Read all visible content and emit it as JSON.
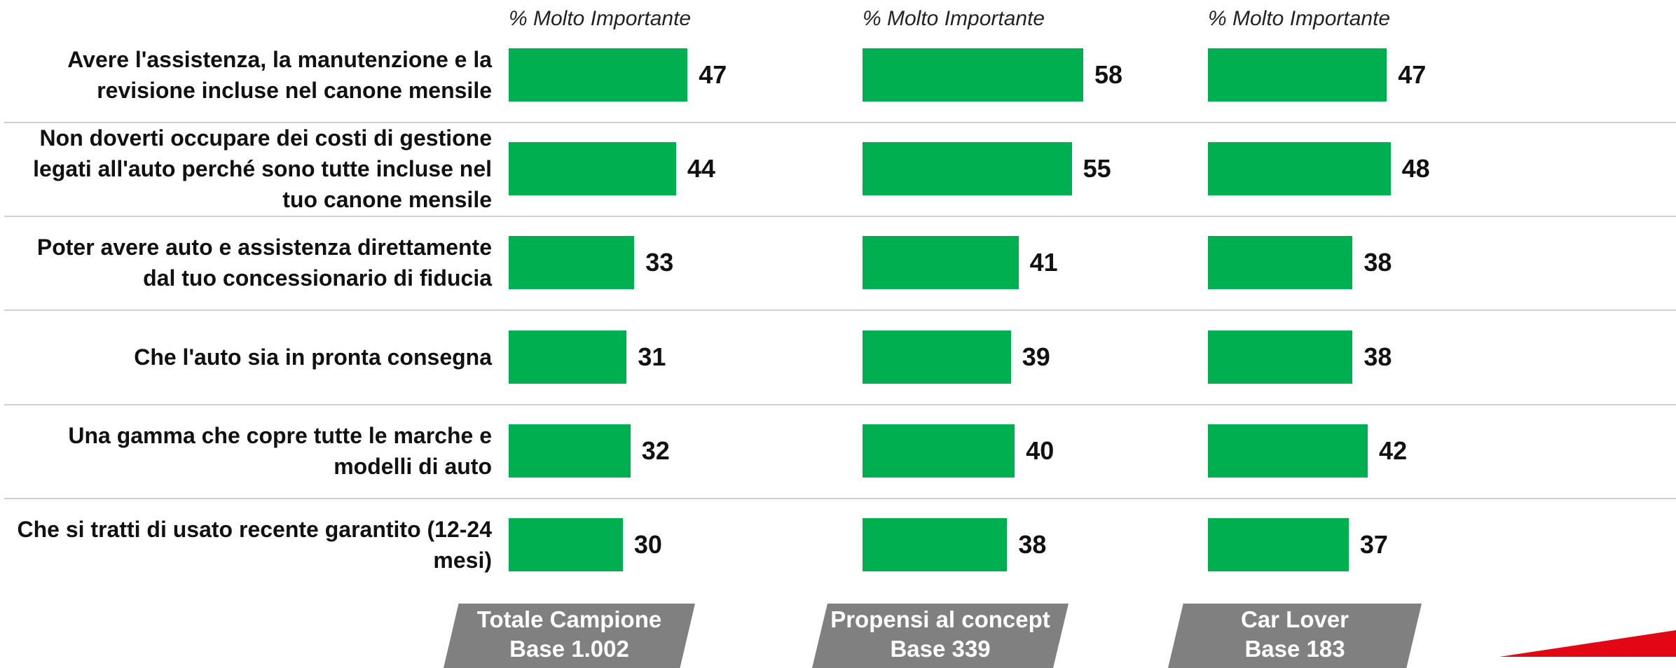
{
  "chart_data": {
    "type": "bar",
    "orientation": "horizontal",
    "categories": [
      "Avere l'assistenza, la manutenzione e la revisione incluse nel canone mensile",
      "Non doverti occupare dei costi di gestione legati all'auto perché sono tutte incluse nel tuo canone mensile",
      "Poter avere auto e assistenza direttamente dal tuo concessionario di fiducia",
      "Che l'auto sia in pronta consegna",
      "Una gamma che copre tutte le marche e modelli di auto",
      "Che si tratti di usato recente garantito (12-24 mesi)"
    ],
    "xlim": [
      0,
      100
    ],
    "series": [
      {
        "name": "Totale Campione",
        "base": "Base 1.002",
        "header": "% Molto Importante",
        "color": "#00b050",
        "values": [
          47,
          44,
          33,
          31,
          32,
          30
        ]
      },
      {
        "name": "Propensi al concept",
        "base": "Base 339",
        "header": "% Molto Importante",
        "color": "#00b050",
        "values": [
          58,
          55,
          41,
          39,
          40,
          38
        ]
      },
      {
        "name": "Car Lover",
        "base": "Base 183",
        "header": "% Molto Importante",
        "color": "#00b050",
        "values": [
          47,
          48,
          38,
          38,
          42,
          37
        ]
      }
    ]
  }
}
